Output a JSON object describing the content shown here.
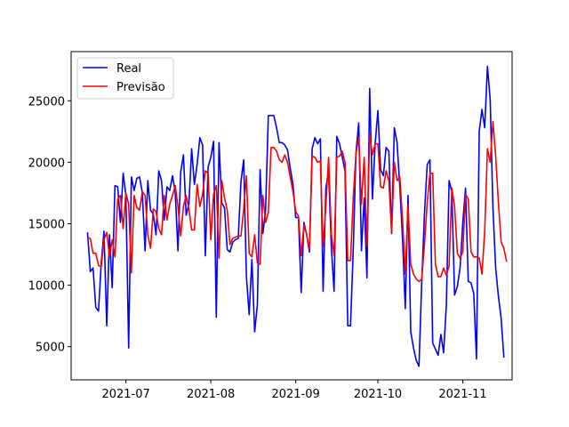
{
  "chart_data": {
    "type": "line",
    "title": "",
    "xlabel": "",
    "ylabel": "",
    "x_start": "2021-06-17",
    "x_end": "2021-11-13",
    "xlim": [
      "2021-06-11",
      "2021-11-19"
    ],
    "ylim": [
      2300,
      29000
    ],
    "x_ticks": [
      {
        "date": "2021-07-01",
        "label": "2021-07"
      },
      {
        "date": "2021-08-01",
        "label": "2021-08"
      },
      {
        "date": "2021-09-01",
        "label": "2021-09"
      },
      {
        "date": "2021-10-01",
        "label": "2021-10"
      },
      {
        "date": "2021-11-01",
        "label": "2021-11"
      }
    ],
    "y_ticks": [
      {
        "value": 5000,
        "label": "5000"
      },
      {
        "value": 10000,
        "label": "10000"
      },
      {
        "value": 15000,
        "label": "15000"
      },
      {
        "value": 20000,
        "label": "20000"
      },
      {
        "value": 25000,
        "label": "25000"
      }
    ],
    "grid": false,
    "legend_position": "upper-left",
    "series": [
      {
        "name": "Real",
        "color": "#0000ff",
        "values": [
          14300,
          11100,
          11400,
          8200,
          7900,
          11800,
          14400,
          6700,
          14100,
          9800,
          18100,
          18000,
          15100,
          19100,
          17300,
          4900,
          18800,
          17700,
          18700,
          18800,
          17500,
          12800,
          18500,
          16100,
          15800,
          14100,
          19300,
          18500,
          15300,
          18000,
          17700,
          18900,
          17600,
          12800,
          19200,
          20600,
          15700,
          16600,
          21100,
          18200,
          19800,
          22000,
          21400,
          12400,
          19600,
          20400,
          21700,
          7400,
          21600,
          16700,
          16300,
          12900,
          12700,
          13500,
          13700,
          13800,
          18400,
          20200,
          10700,
          7600,
          12100,
          6200,
          8400,
          19400,
          14200,
          16100,
          23800,
          23800,
          23800,
          22800,
          21600,
          21600,
          21400,
          21000,
          19500,
          18200,
          15500,
          15500,
          9400,
          15100,
          14100,
          12700,
          21100,
          22000,
          21500,
          21900,
          9500,
          17900,
          19300,
          13100,
          9500,
          22100,
          21500,
          20400,
          19300,
          6700,
          6700,
          12900,
          20800,
          23200,
          12800,
          17100,
          10600,
          26000,
          17000,
          21500,
          24200,
          19400,
          18900,
          21200,
          20900,
          14200,
          22800,
          21600,
          18000,
          13800,
          8100,
          17300,
          6200,
          4900,
          3900,
          3400,
          10200,
          15800,
          19800,
          20200,
          5300,
          4800,
          4300,
          6000,
          4500,
          8400,
          18500,
          17600,
          9200,
          9900,
          11400,
          15100,
          17900,
          10300,
          10200,
          9300,
          4000,
          22500,
          24300,
          22800,
          27800,
          25100,
          16300,
          11400,
          9100,
          7300,
          4100
        ]
      },
      {
        "name": "Previsão",
        "color": "#ff0000",
        "values": [
          13900,
          13800,
          12600,
          12600,
          11600,
          11500,
          13700,
          14300,
          12300,
          13700,
          12300,
          17000,
          17300,
          14600,
          17500,
          16600,
          11000,
          17300,
          16300,
          16100,
          17600,
          17300,
          14100,
          13000,
          16200,
          16000,
          14600,
          14100,
          17300,
          15300,
          16600,
          17300,
          18100,
          16400,
          14000,
          16400,
          17300,
          16200,
          14500,
          14500,
          18200,
          16400,
          17400,
          19300,
          19100,
          13700,
          17400,
          18100,
          12200,
          18500,
          17100,
          16100,
          13300,
          13800,
          13900,
          14000,
          14000,
          16200,
          18900,
          12600,
          12300,
          14100,
          11800,
          11700,
          17300,
          15100,
          15900,
          21200,
          21200,
          20900,
          20200,
          20000,
          20600,
          20000,
          18800,
          17600,
          16000,
          15600,
          12400,
          14900,
          14100,
          12900,
          20500,
          20400,
          20000,
          20100,
          13100,
          16400,
          20400,
          14200,
          12400,
          20400,
          20500,
          20900,
          20000,
          12000,
          12000,
          17100,
          20700,
          22000,
          16600,
          20400,
          13200,
          22300,
          20600,
          21500,
          21500,
          18000,
          17900,
          19300,
          18500,
          14300,
          20000,
          18500,
          18800,
          15300,
          10900,
          16500,
          11700,
          10900,
          10500,
          10300,
          10500,
          13300,
          16700,
          19100,
          19100,
          11700,
          10700,
          10700,
          11400,
          10800,
          11600,
          17900,
          16400,
          12600,
          12200,
          12700,
          17400,
          17000,
          12700,
          12300,
          12300,
          12200,
          10900,
          14400,
          21100,
          20000,
          23300,
          20500,
          16700,
          13500,
          13000,
          11900
        ]
      }
    ]
  }
}
